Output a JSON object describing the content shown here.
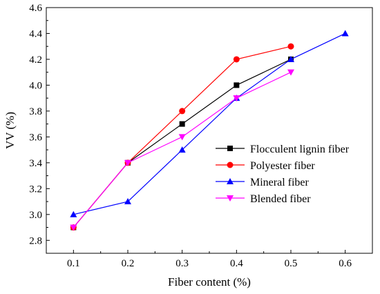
{
  "chart_data": {
    "type": "line",
    "title": "",
    "xlabel": "Fiber content (%)",
    "ylabel": "VV (%)",
    "xlim": [
      0.05,
      0.65
    ],
    "ylim": [
      2.7,
      4.6
    ],
    "xticks": [
      0.1,
      0.2,
      0.3,
      0.4,
      0.5,
      0.6
    ],
    "xtick_labels": [
      "0.1",
      "0.2",
      "0.3",
      "0.4",
      "0.5",
      "0.6"
    ],
    "yticks": [
      2.8,
      3.0,
      3.2,
      3.4,
      3.6,
      3.8,
      4.0,
      4.2,
      4.4,
      4.6
    ],
    "ytick_labels": [
      "2.8",
      "3.0",
      "3.2",
      "3.4",
      "3.6",
      "3.8",
      "4.0",
      "4.2",
      "4.4",
      "4.6"
    ],
    "grid": false,
    "legend_position": "lower-right",
    "series": [
      {
        "name": "Flocculent lignin fiber",
        "color": "#000000",
        "marker": "square",
        "x": [
          0.1,
          0.2,
          0.3,
          0.4,
          0.5
        ],
        "y": [
          2.9,
          3.4,
          3.7,
          4.0,
          4.2
        ]
      },
      {
        "name": "Polyester fiber",
        "color": "#ff0000",
        "marker": "circle",
        "x": [
          0.1,
          0.2,
          0.3,
          0.4,
          0.5
        ],
        "y": [
          2.9,
          3.4,
          3.8,
          4.2,
          4.3
        ]
      },
      {
        "name": "Mineral fiber",
        "color": "#0000ff",
        "marker": "triangle-up",
        "x": [
          0.1,
          0.2,
          0.3,
          0.4,
          0.5,
          0.6
        ],
        "y": [
          3.0,
          3.1,
          3.5,
          3.9,
          4.2,
          4.4
        ]
      },
      {
        "name": "Blended fiber",
        "color": "#ff00ff",
        "marker": "triangle-down",
        "x": [
          0.1,
          0.2,
          0.3,
          0.4,
          0.5
        ],
        "y": [
          2.9,
          3.4,
          3.6,
          3.9,
          4.1
        ]
      }
    ]
  }
}
